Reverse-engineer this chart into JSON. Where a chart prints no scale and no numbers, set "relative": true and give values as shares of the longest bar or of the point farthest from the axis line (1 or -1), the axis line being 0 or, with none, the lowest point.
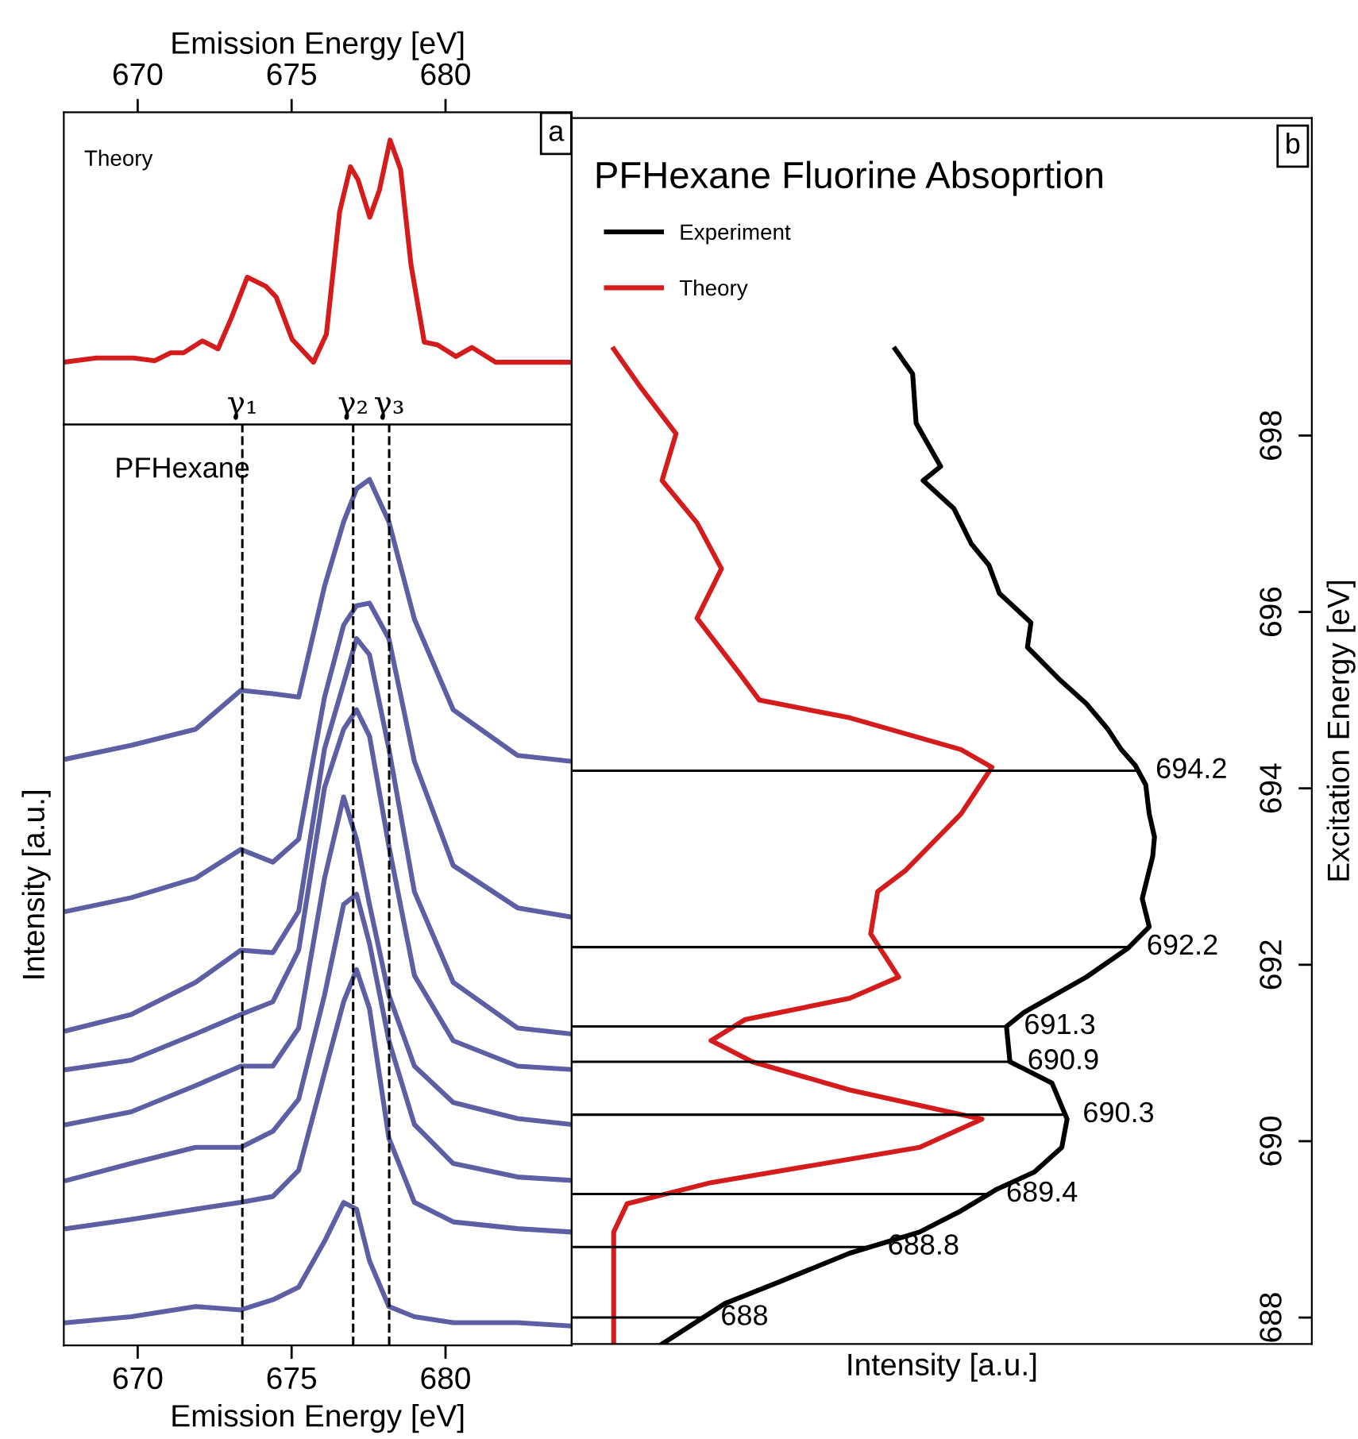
{
  "chart_data": [
    {
      "type": "line",
      "xlabel": "Emission Energy [eV]",
      "xlim": [
        667.6,
        684.1
      ],
      "xticks": [
        670,
        675,
        680
      ],
      "relative": true,
      "grid": false,
      "legend": false,
      "annotations": [
        "a",
        "Theory"
      ],
      "x": [
        667.6,
        668.66,
        669.86,
        670.55,
        671.07,
        671.49,
        672.1,
        672.61,
        673.04,
        673.56,
        674.16,
        674.5,
        675.02,
        675.71,
        676.13,
        676.56,
        676.91,
        677.16,
        677.54,
        677.85,
        678.2,
        678.54,
        678.88,
        679.31,
        679.74,
        680.34,
        680.86,
        681.63,
        684.1
      ],
      "series": [
        {
          "color": "#d41c1c",
          "values": [
            0.219,
            0.234,
            0.234,
            0.224,
            0.252,
            0.252,
            0.294,
            0.266,
            0.374,
            0.518,
            0.486,
            0.448,
            0.299,
            0.219,
            0.318,
            0.748,
            0.906,
            0.86,
            0.729,
            0.823,
            1.0,
            0.897,
            0.561,
            0.29,
            0.28,
            0.239,
            0.271,
            0.219,
            0.219
          ]
        }
      ]
    },
    {
      "type": "line",
      "xlabel": "Emission Energy [eV]",
      "ylabel": "Intensity [a.u.]",
      "xlim": [
        667.6,
        684.1
      ],
      "xticks": [
        670,
        675,
        680
      ],
      "relative": true,
      "grid": false,
      "legend": false,
      "annotations": [
        "PFHexane"
      ],
      "ref_lines": [
        {
          "axis": "x",
          "value": 673.4,
          "label": "γ₁",
          "color": "#000000",
          "line_style": "dashed"
        },
        {
          "axis": "x",
          "value": 677.0,
          "label": "γ₂",
          "color": "#000000",
          "line_style": "dashed"
        },
        {
          "axis": "x",
          "value": 678.17,
          "label": "γ₃",
          "color": "#000000",
          "line_style": "dashed"
        }
      ],
      "x": [
        667.7,
        669.79,
        671.88,
        673.35,
        674.39,
        675.23,
        676.07,
        676.69,
        677.11,
        677.53,
        678.16,
        678.99,
        680.25,
        682.34,
        684.1
      ],
      "series": [
        {
          "color": "#5c5fa3",
          "values": [
            0.67,
            0.686,
            0.705,
            0.751,
            0.747,
            0.743,
            0.874,
            0.95,
            0.989,
            1.0,
            0.95,
            0.835,
            0.728,
            0.674,
            0.667
          ]
        },
        {
          "color": "#5c5fa3",
          "values": [
            0.49,
            0.506,
            0.529,
            0.563,
            0.548,
            0.575,
            0.743,
            0.828,
            0.851,
            0.854,
            0.812,
            0.667,
            0.544,
            0.494,
            0.483
          ]
        },
        {
          "color": "#5c5fa3",
          "values": [
            0.349,
            0.368,
            0.406,
            0.444,
            0.441,
            0.49,
            0.682,
            0.759,
            0.812,
            0.793,
            0.682,
            0.513,
            0.406,
            0.352,
            0.345
          ]
        },
        {
          "color": "#5c5fa3",
          "values": [
            0.303,
            0.314,
            0.345,
            0.368,
            0.383,
            0.444,
            0.636,
            0.705,
            0.728,
            0.697,
            0.567,
            0.414,
            0.337,
            0.307,
            0.303
          ]
        },
        {
          "color": "#5c5fa3",
          "values": [
            0.238,
            0.253,
            0.284,
            0.307,
            0.307,
            0.352,
            0.529,
            0.625,
            0.575,
            0.498,
            0.391,
            0.307,
            0.264,
            0.245,
            0.238
          ]
        },
        {
          "color": "#5c5fa3",
          "values": [
            0.172,
            0.192,
            0.211,
            0.211,
            0.23,
            0.268,
            0.391,
            0.498,
            0.51,
            0.452,
            0.337,
            0.238,
            0.192,
            0.176,
            0.172
          ]
        },
        {
          "color": "#5c5fa3",
          "values": [
            0.115,
            0.126,
            0.138,
            0.146,
            0.153,
            0.184,
            0.299,
            0.383,
            0.421,
            0.375,
            0.222,
            0.146,
            0.123,
            0.115,
            0.111
          ]
        },
        {
          "color": "#5c5fa3",
          "values": [
            0.004,
            0.011,
            0.023,
            0.019,
            0.031,
            0.046,
            0.1,
            0.146,
            0.138,
            0.077,
            0.023,
            0.011,
            0.004,
            0.004,
            0
          ]
        }
      ]
    },
    {
      "type": "line",
      "orientation": "horizontal",
      "title": "PFHexane Fluorine Absoprtion",
      "xlabel": "Intensity [a.u.]",
      "ylabel": "Excitation Energy [eV]",
      "ylim": [
        687.7,
        701.6
      ],
      "yticks": [
        688,
        690,
        692,
        694,
        696,
        698
      ],
      "relative": true,
      "grid": false,
      "legend": "top left",
      "annotations": [
        "b"
      ],
      "ref_lines": [
        {
          "axis": "y",
          "value": 694.2,
          "label": "694.2",
          "color": "#000000"
        },
        {
          "axis": "y",
          "value": 692.2,
          "label": "692.2",
          "color": "#000000"
        },
        {
          "axis": "y",
          "value": 691.3,
          "label": "691.3",
          "color": "#000000"
        },
        {
          "axis": "y",
          "value": 690.9,
          "label": "690.9",
          "color": "#000000"
        },
        {
          "axis": "y",
          "value": 690.3,
          "label": "690.3",
          "color": "#000000"
        },
        {
          "axis": "y",
          "value": 689.4,
          "label": "689.4",
          "color": "#000000"
        },
        {
          "axis": "y",
          "value": 688.8,
          "label": "688.8",
          "color": "#000000"
        },
        {
          "axis": "y",
          "value": 688,
          "label": "688",
          "color": "#000000"
        }
      ],
      "series": [
        {
          "name": "Experiment",
          "color": "#000000",
          "values": [
            0.555,
            0.585,
            0.591,
            0.633,
            0.603,
            0.656,
            0.686,
            0.716,
            0.734,
            0.788,
            0.782,
            0.836,
            0.883,
            0.919,
            0.943,
            0.967,
            0.985,
            0.991,
            1.0,
            0.997,
            0.979,
            0.991,
            0.955,
            0.883,
            0.776,
            0.746,
            0.752,
            0.776,
            0.824,
            0.85,
            0.841,
            0.794,
            0.728,
            0.668,
            0.597,
            0.477,
            0.358,
            0.263,
            0.155
          ],
          "x": [
            698.98,
            698.7,
            698.14,
            697.65,
            697.49,
            697.17,
            696.77,
            696.53,
            696.21,
            695.88,
            695.6,
            695.24,
            694.96,
            694.68,
            694.44,
            694.26,
            694.04,
            693.71,
            693.45,
            693.23,
            692.75,
            692.43,
            692.19,
            691.86,
            691.46,
            691.3,
            690.9,
            690.82,
            690.66,
            690.25,
            689.93,
            689.65,
            689.45,
            689.21,
            688.97,
            688.73,
            688.41,
            688.16,
            687.7
          ]
        },
        {
          "name": "Theory",
          "color": "#d41c1c",
          "values": [
            0.072,
            0.119,
            0.179,
            0.155,
            0.215,
            0.257,
            0.215,
            0.286,
            0.322,
            0.477,
            0.668,
            0.721,
            0.668,
            0.573,
            0.525,
            0.513,
            0.561,
            0.477,
            0.298,
            0.239,
            0.31,
            0.477,
            0.704,
            0.597,
            0.239,
            0.095,
            0.072,
            0.072
          ],
          "x": [
            698.98,
            698.54,
            698.02,
            697.49,
            697.01,
            696.49,
            695.93,
            695.32,
            695.0,
            694.8,
            694.44,
            694.24,
            693.71,
            693.07,
            692.83,
            692.35,
            691.86,
            691.62,
            691.38,
            691.14,
            690.9,
            690.58,
            690.25,
            689.93,
            689.53,
            689.29,
            688.97,
            687.7
          ]
        }
      ]
    }
  ]
}
